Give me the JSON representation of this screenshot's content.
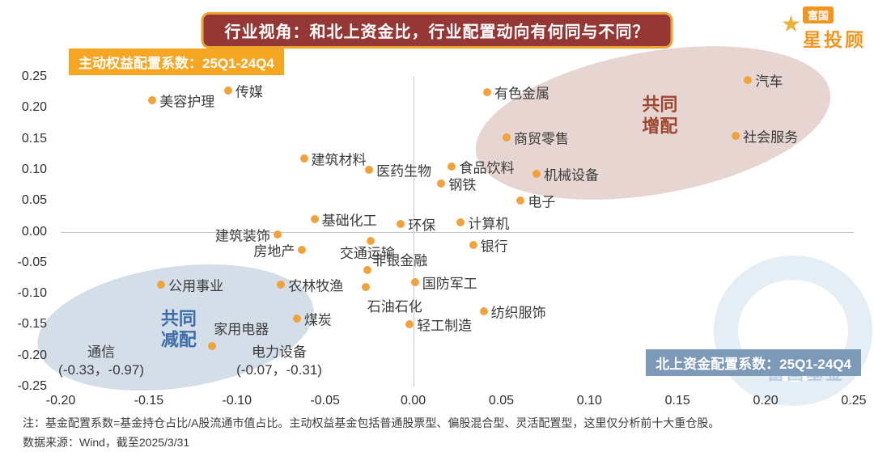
{
  "header": {
    "title": "行业视角：和北上资金比，行业配置动向有何同与不同？",
    "logo": {
      "brand_box": "富国",
      "brand_name": "星投顾"
    }
  },
  "badges": {
    "left": "主动权益配置系数：25Q1-24Q4",
    "right": "北上资金配置系数：25Q1-24Q4"
  },
  "watermark": "富国基金",
  "footer": {
    "note1": "注：基金配置系数=基金持仓占比/A股流通市值占比。主动权益基金包括普通股票型、偏股混合型、灵活配置型，这里仅分析前十大重仓股。",
    "note2": "数据来源：Wind，截至2025/3/31"
  },
  "colors": {
    "point": "#F0A33A",
    "title_bg": "#943735",
    "title_border": "#EFA234",
    "badge_left_bg": "#F5A623",
    "badge_right_bg": "#7D99B8",
    "increase_region_label": "#9C4631",
    "decrease_region_label": "#3E6CA6"
  },
  "chart_data": {
    "type": "scatter",
    "xlabel": "北上资金配置系数",
    "ylabel": "主动权益配置系数",
    "xlim": [
      -0.2,
      0.25
    ],
    "ylim": [
      -0.25,
      0.25
    ],
    "x_ticks": [
      -0.2,
      -0.15,
      -0.1,
      -0.05,
      0.0,
      0.05,
      0.1,
      0.15,
      0.2,
      0.25
    ],
    "y_ticks": [
      0.25,
      0.2,
      0.15,
      0.1,
      0.05,
      0.0,
      -0.05,
      -0.1,
      -0.15,
      -0.2,
      -0.25
    ],
    "grid": false,
    "points": [
      {
        "name": "美容护理",
        "x": -0.148,
        "y": 0.212,
        "side": "right"
      },
      {
        "name": "传媒",
        "x": -0.105,
        "y": 0.228,
        "side": "right"
      },
      {
        "name": "有色金属",
        "x": 0.042,
        "y": 0.225,
        "side": "right"
      },
      {
        "name": "汽车",
        "x": 0.19,
        "y": 0.245,
        "side": "right"
      },
      {
        "name": "社会服务",
        "x": 0.183,
        "y": 0.155,
        "side": "right"
      },
      {
        "name": "商贸零售",
        "x": 0.053,
        "y": 0.152,
        "side": "right"
      },
      {
        "name": "建筑材料",
        "x": -0.062,
        "y": 0.118,
        "side": "right"
      },
      {
        "name": "医药生物",
        "x": -0.025,
        "y": 0.1,
        "side": "right"
      },
      {
        "name": "食品饮料",
        "x": 0.022,
        "y": 0.105,
        "side": "right"
      },
      {
        "name": "机械设备",
        "x": 0.07,
        "y": 0.093,
        "side": "right"
      },
      {
        "name": "钢铁",
        "x": 0.016,
        "y": 0.078,
        "side": "right"
      },
      {
        "name": "电子",
        "x": 0.061,
        "y": 0.05,
        "side": "right"
      },
      {
        "name": "基础化工",
        "x": -0.056,
        "y": 0.02,
        "side": "right"
      },
      {
        "name": "环保",
        "x": -0.007,
        "y": 0.012,
        "side": "right"
      },
      {
        "name": "计算机",
        "x": 0.027,
        "y": 0.015,
        "side": "right"
      },
      {
        "name": "建筑装饰",
        "x": -0.077,
        "y": -0.005,
        "side": "left"
      },
      {
        "name": "房地产",
        "x": -0.063,
        "y": -0.03,
        "side": "left"
      },
      {
        "name": "非银金融",
        "x": -0.024,
        "y": -0.015,
        "side": "bottomright"
      },
      {
        "name": "银行",
        "x": 0.034,
        "y": -0.022,
        "side": "right"
      },
      {
        "name": "交通运输",
        "x": -0.026,
        "y": -0.062,
        "side": "top"
      },
      {
        "name": "公用事业",
        "x": -0.143,
        "y": -0.086,
        "side": "right"
      },
      {
        "name": "农林牧渔",
        "x": -0.075,
        "y": -0.086,
        "side": "right"
      },
      {
        "name": "国防军工",
        "x": 0.001,
        "y": -0.082,
        "side": "right"
      },
      {
        "name": "石油石化",
        "x": -0.027,
        "y": -0.089,
        "side": "bottomright"
      },
      {
        "name": "纺织服饰",
        "x": 0.04,
        "y": -0.128,
        "side": "right"
      },
      {
        "name": "煤炭",
        "x": -0.066,
        "y": -0.14,
        "side": "right"
      },
      {
        "name": "轻工制造",
        "x": -0.002,
        "y": -0.15,
        "side": "right"
      },
      {
        "name": "家用电器",
        "x": -0.114,
        "y": -0.185,
        "side": "topright"
      }
    ],
    "annotations": [
      {
        "name": "通信",
        "x": -0.33,
        "y": -0.97,
        "lines": [
          "通信",
          "(-0.33，-0.97)"
        ],
        "display_x": -0.177,
        "display_y": -0.21
      },
      {
        "name": "电力设备",
        "x": -0.07,
        "y": -0.31,
        "lines": [
          "电力设备",
          "(-0.07，-0.31)"
        ],
        "display_x": -0.076,
        "display_y": -0.21
      }
    ],
    "regions": [
      {
        "name": "共同增配",
        "label_lines": [
          "共同",
          "增配"
        ],
        "cx": 0.136,
        "cy": 0.175,
        "rx": 0.102,
        "ry": 0.115,
        "rotate": -10,
        "fill": "rgba(198,156,146,0.42)",
        "label_color": "#9C4631",
        "label_x": 0.14,
        "label_y": 0.187
      },
      {
        "name": "共同减配",
        "label_lines": [
          "共同",
          "减配"
        ],
        "cx": -0.135,
        "cy": -0.155,
        "rx": 0.079,
        "ry": 0.098,
        "rotate": -8,
        "fill": "rgba(148,173,201,0.40)",
        "label_color": "#3E6CA6",
        "label_x": -0.133,
        "label_y": -0.158
      }
    ]
  }
}
